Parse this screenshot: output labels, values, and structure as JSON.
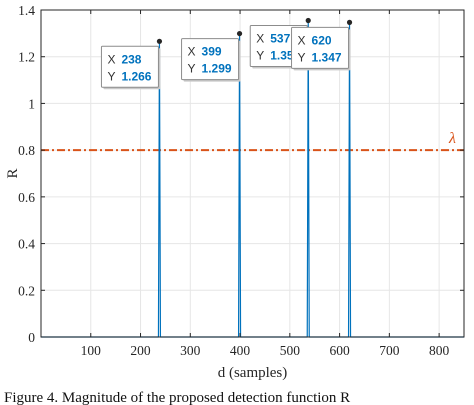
{
  "caption": "Figure 4. Magnitude of the proposed detection function R",
  "chart_data": {
    "type": "line",
    "xlabel": "d (samples)",
    "ylabel": "R",
    "xlim": [
      0,
      850
    ],
    "ylim": [
      0,
      1.4
    ],
    "xticks": [
      100,
      200,
      300,
      400,
      500,
      600,
      700,
      800
    ],
    "yticks": [
      0,
      0.2,
      0.4,
      0.6,
      0.8,
      1,
      1.2,
      1.4
    ],
    "grid": true,
    "series": [
      {
        "name": "",
        "color": "#0072BD",
        "baseline": 0,
        "peak_width": 4,
        "peaks": [
          {
            "x": 238,
            "y": 1.266
          },
          {
            "x": 399,
            "y": 1.299
          },
          {
            "x": 537,
            "y": 1.355
          },
          {
            "x": 620,
            "y": 1.347
          }
        ]
      }
    ],
    "threshold": {
      "label": "λ",
      "value": 0.8,
      "color": "#D95319",
      "style": "dash-dot"
    },
    "datatips": [
      {
        "x_key": "X",
        "x_value": "238",
        "y_key": "Y",
        "y_value": "1.266"
      },
      {
        "x_key": "X",
        "x_value": "399",
        "y_key": "Y",
        "y_value": "1.299"
      },
      {
        "x_key": "X",
        "x_value": "537",
        "y_key": "Y",
        "y_value": "1.355"
      },
      {
        "x_key": "X",
        "x_value": "620",
        "y_key": "Y",
        "y_value": "1.347"
      }
    ]
  }
}
